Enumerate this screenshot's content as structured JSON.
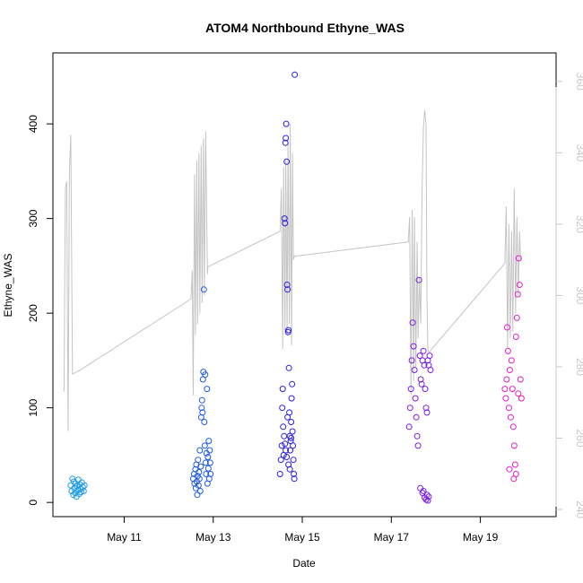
{
  "chart_data": {
    "type": "scatter",
    "title": "ATOM4 Northbound Ethyne_WAS",
    "xlabel": "Date",
    "ylabel": "Ethyne_WAS",
    "x_ticks": [
      "May 11",
      "May 13",
      "May 15",
      "May 17",
      "May 19"
    ],
    "x_tick_days": [
      11,
      13,
      15,
      17,
      19
    ],
    "xlim_days": [
      9.4,
      20.7
    ],
    "ylim": [
      -15,
      475
    ],
    "y_ticks": [
      0,
      100,
      200,
      300,
      400
    ],
    "y2lim": [
      238,
      368
    ],
    "y2_ticks": [
      240,
      260,
      280,
      300,
      320,
      340,
      360
    ],
    "grid": false,
    "series": [
      {
        "color": "#1e9be6",
        "points": [
          [
            9.8,
            18
          ],
          [
            9.82,
            12
          ],
          [
            9.84,
            25
          ],
          [
            9.86,
            8
          ],
          [
            9.87,
            22
          ],
          [
            9.88,
            15
          ],
          [
            9.9,
            10
          ],
          [
            9.91,
            20
          ],
          [
            9.93,
            6
          ],
          [
            9.94,
            17
          ],
          [
            9.96,
            13
          ],
          [
            9.97,
            24
          ],
          [
            9.99,
            9
          ],
          [
            10.0,
            19
          ],
          [
            10.02,
            14
          ],
          [
            10.03,
            11
          ],
          [
            10.05,
            21
          ],
          [
            10.07,
            16
          ],
          [
            10.09,
            12
          ],
          [
            10.11,
            18
          ]
        ]
      },
      {
        "color": "#1e5ae6",
        "points": [
          [
            12.55,
            25
          ],
          [
            12.57,
            30
          ],
          [
            12.58,
            20
          ],
          [
            12.6,
            35
          ],
          [
            12.61,
            15
          ],
          [
            12.62,
            40
          ],
          [
            12.63,
            22
          ],
          [
            12.64,
            8
          ],
          [
            12.65,
            28
          ],
          [
            12.66,
            45
          ],
          [
            12.67,
            18
          ],
          [
            12.68,
            32
          ],
          [
            12.69,
            25
          ],
          [
            12.7,
            55
          ],
          [
            12.71,
            12
          ],
          [
            12.72,
            38
          ],
          [
            12.73,
            90
          ],
          [
            12.74,
            100
          ],
          [
            12.75,
            108
          ],
          [
            12.76,
            95
          ],
          [
            12.77,
            130
          ],
          [
            12.78,
            138
          ],
          [
            12.79,
            225
          ],
          [
            12.8,
            85
          ],
          [
            12.81,
            60
          ],
          [
            12.82,
            135
          ],
          [
            12.83,
            42
          ],
          [
            12.84,
            30
          ],
          [
            12.85,
            52
          ],
          [
            12.86,
            120
          ],
          [
            12.87,
            20
          ],
          [
            12.88,
            48
          ],
          [
            12.89,
            36
          ],
          [
            12.9,
            65
          ],
          [
            12.91,
            25
          ],
          [
            12.92,
            55
          ],
          [
            12.93,
            42
          ],
          [
            12.94,
            30
          ]
        ]
      },
      {
        "color": "#2a1ee6",
        "points": [
          [
            14.5,
            30
          ],
          [
            14.52,
            45
          ],
          [
            14.54,
            60
          ],
          [
            14.55,
            100
          ],
          [
            14.56,
            120
          ],
          [
            14.57,
            80
          ],
          [
            14.58,
            50
          ],
          [
            14.6,
            300
          ],
          [
            14.61,
            295
          ],
          [
            14.62,
            380
          ],
          [
            14.63,
            385
          ],
          [
            14.64,
            400
          ],
          [
            14.65,
            360
          ],
          [
            14.66,
            230
          ],
          [
            14.67,
            225
          ],
          [
            14.68,
            180
          ],
          [
            14.69,
            182
          ],
          [
            14.7,
            142
          ],
          [
            14.71,
            95
          ],
          [
            14.72,
            70
          ],
          [
            14.73,
            55
          ],
          [
            14.74,
            65
          ],
          [
            14.75,
            85
          ],
          [
            14.76,
            110
          ],
          [
            14.77,
            125
          ],
          [
            14.78,
            75
          ],
          [
            14.79,
            60
          ],
          [
            14.8,
            45
          ],
          [
            14.81,
            30
          ],
          [
            14.82,
            25
          ],
          [
            14.83,
            452
          ],
          [
            14.59,
            70
          ],
          [
            14.61,
            62
          ],
          [
            14.63,
            55
          ],
          [
            14.65,
            48
          ],
          [
            14.67,
            90
          ],
          [
            14.69,
            40
          ],
          [
            14.72,
            35
          ],
          [
            14.75,
            68
          ]
        ]
      },
      {
        "color": "#7a1ee6",
        "points": [
          [
            17.4,
            80
          ],
          [
            17.42,
            100
          ],
          [
            17.44,
            120
          ],
          [
            17.46,
            150
          ],
          [
            17.48,
            190
          ],
          [
            17.5,
            165
          ],
          [
            17.52,
            140
          ],
          [
            17.54,
            110
          ],
          [
            17.56,
            90
          ],
          [
            17.58,
            70
          ],
          [
            17.6,
            60
          ],
          [
            17.62,
            235
          ],
          [
            17.64,
            155
          ],
          [
            17.66,
            130
          ],
          [
            17.68,
            125
          ],
          [
            17.7,
            150
          ],
          [
            17.72,
            160
          ],
          [
            17.74,
            145
          ],
          [
            17.76,
            120
          ],
          [
            17.78,
            100
          ],
          [
            17.8,
            95
          ],
          [
            17.82,
            150
          ],
          [
            17.84,
            145
          ],
          [
            17.86,
            155
          ],
          [
            17.88,
            140
          ],
          [
            17.65,
            15
          ],
          [
            17.7,
            10
          ],
          [
            17.75,
            5
          ],
          [
            17.78,
            3
          ],
          [
            17.8,
            8
          ],
          [
            17.82,
            2
          ],
          [
            17.84,
            6
          ],
          [
            17.72,
            12
          ]
        ]
      },
      {
        "color": "#e61ec8",
        "points": [
          [
            19.55,
            120
          ],
          [
            19.57,
            110
          ],
          [
            19.59,
            130
          ],
          [
            19.6,
            185
          ],
          [
            19.62,
            160
          ],
          [
            19.64,
            100
          ],
          [
            19.66,
            140
          ],
          [
            19.68,
            90
          ],
          [
            19.7,
            150
          ],
          [
            19.72,
            120
          ],
          [
            19.74,
            80
          ],
          [
            19.76,
            60
          ],
          [
            19.78,
            40
          ],
          [
            19.8,
            175
          ],
          [
            19.82,
            195
          ],
          [
            19.84,
            220
          ],
          [
            19.86,
            258
          ],
          [
            19.88,
            230
          ],
          [
            19.9,
            130
          ],
          [
            19.92,
            110
          ],
          [
            19.75,
            25
          ],
          [
            19.8,
            30
          ],
          [
            19.85,
            115
          ],
          [
            19.65,
            35
          ]
        ]
      }
    ],
    "line_series": {
      "color": "#c4c4c4",
      "axis": "right",
      "points": [
        [
          9.65,
          273
        ],
        [
          9.68,
          330
        ],
        [
          9.71,
          332
        ],
        [
          9.74,
          262
        ],
        [
          9.77,
          335
        ],
        [
          9.8,
          345
        ],
        [
          9.84,
          278
        ],
        [
          10.0,
          279
        ],
        [
          12.5,
          299
        ],
        [
          12.53,
          307
        ],
        [
          12.55,
          272
        ],
        [
          12.58,
          334
        ],
        [
          12.6,
          289
        ],
        [
          12.63,
          338
        ],
        [
          12.65,
          292
        ],
        [
          12.68,
          340
        ],
        [
          12.7,
          295
        ],
        [
          12.73,
          342
        ],
        [
          12.75,
          298
        ],
        [
          12.78,
          344
        ],
        [
          12.8,
          300
        ],
        [
          12.83,
          346
        ],
        [
          12.87,
          306
        ],
        [
          12.88,
          308
        ],
        [
          14.5,
          318
        ],
        [
          14.53,
          330
        ],
        [
          14.56,
          285
        ],
        [
          14.58,
          336
        ],
        [
          14.61,
          290
        ],
        [
          14.63,
          338
        ],
        [
          14.66,
          289
        ],
        [
          14.68,
          343
        ],
        [
          14.71,
          292
        ],
        [
          14.73,
          348
        ],
        [
          14.76,
          286
        ],
        [
          14.78,
          340
        ],
        [
          14.8,
          310
        ],
        [
          14.82,
          311
        ],
        [
          17.38,
          315
        ],
        [
          17.41,
          322
        ],
        [
          17.44,
          272
        ],
        [
          17.47,
          324
        ],
        [
          17.5,
          276
        ],
        [
          17.52,
          322
        ],
        [
          17.55,
          280
        ],
        [
          17.58,
          315
        ],
        [
          17.6,
          288
        ],
        [
          17.63,
          305
        ],
        [
          17.66,
          292
        ],
        [
          17.69,
          330
        ],
        [
          17.72,
          347
        ],
        [
          17.75,
          352
        ],
        [
          17.78,
          348
        ],
        [
          17.8,
          300
        ],
        [
          17.82,
          285
        ],
        [
          17.84,
          284
        ],
        [
          19.55,
          309
        ],
        [
          19.58,
          325
        ],
        [
          19.61,
          285
        ],
        [
          19.64,
          320
        ],
        [
          19.67,
          288
        ],
        [
          19.7,
          318
        ],
        [
          19.73,
          290
        ],
        [
          19.76,
          330
        ],
        [
          19.79,
          295
        ],
        [
          19.82,
          322
        ],
        [
          19.85,
          300
        ],
        [
          19.88,
          318
        ],
        [
          19.9,
          310
        ]
      ]
    }
  }
}
